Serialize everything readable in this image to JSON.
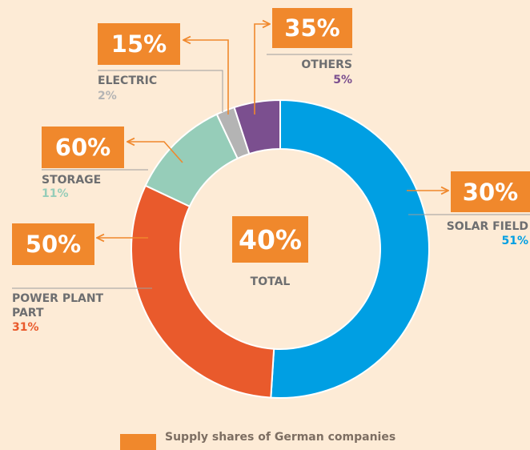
{
  "chart_data": {
    "type": "pie",
    "donut": true,
    "categories": [
      "SOLAR FIELD",
      "POWER PLANT PART",
      "STORAGE",
      "ELECTRIC",
      "OTHERS"
    ],
    "values": [
      51,
      31,
      11,
      2,
      5
    ],
    "value_labels": [
      "51%",
      "31%",
      "11%",
      "2%",
      "5%"
    ],
    "colors": [
      "#009fe3",
      "#e95a2c",
      "#96cdb9",
      "#b4b4b4",
      "#7b4f8f"
    ],
    "supply": {
      "name": "Supply shares of German companies",
      "color": "#f0882c",
      "values": [
        30,
        50,
        60,
        15,
        35
      ],
      "value_labels": [
        "30%",
        "50%",
        "60%",
        "15%",
        "35%"
      ]
    },
    "total": {
      "label": "TOTAL",
      "value": 40,
      "value_label": "40%"
    }
  }
}
